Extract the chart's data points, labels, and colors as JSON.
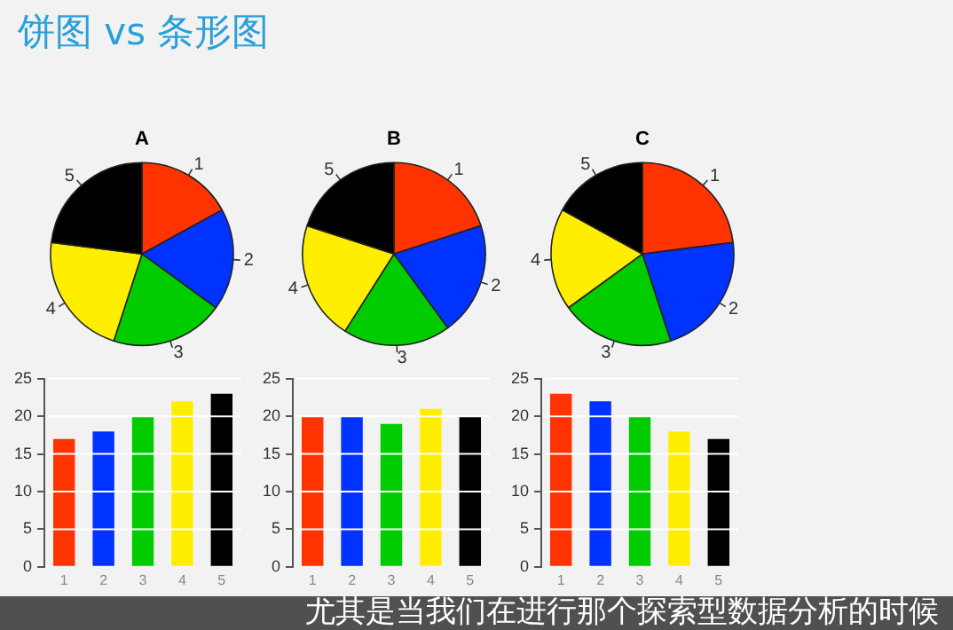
{
  "chart_data": [
    {
      "type": "pie",
      "title": "A",
      "annotations": [
        "饼图 vs 条形图"
      ],
      "categories": [
        "1",
        "2",
        "3",
        "4",
        "5"
      ],
      "values": [
        17,
        18,
        20,
        22,
        23
      ],
      "colors": [
        "#ff3300",
        "#0033ff",
        "#00cc00",
        "#ffee00",
        "#000000"
      ],
      "legend": false
    },
    {
      "type": "pie",
      "title": "B",
      "categories": [
        "1",
        "2",
        "3",
        "4",
        "5"
      ],
      "values": [
        20,
        20,
        19,
        21,
        20
      ],
      "colors": [
        "#ff3300",
        "#0033ff",
        "#00cc00",
        "#ffee00",
        "#000000"
      ],
      "legend": false
    },
    {
      "type": "pie",
      "title": "C",
      "categories": [
        "1",
        "2",
        "3",
        "4",
        "5"
      ],
      "values": [
        23,
        22,
        20,
        18,
        17
      ],
      "colors": [
        "#ff3300",
        "#0033ff",
        "#00cc00",
        "#ffee00",
        "#000000"
      ],
      "legend": false
    },
    {
      "type": "bar",
      "categories": [
        "1",
        "2",
        "3",
        "4",
        "5"
      ],
      "values": [
        17,
        18,
        20,
        22,
        23
      ],
      "colors": [
        "#ff3300",
        "#0033ff",
        "#00cc00",
        "#ffee00",
        "#000000"
      ],
      "ylim": [
        0,
        25
      ],
      "yticks": [
        0,
        5,
        10,
        15,
        20,
        25
      ],
      "grid": "y",
      "legend": false
    },
    {
      "type": "bar",
      "categories": [
        "1",
        "2",
        "3",
        "4",
        "5"
      ],
      "values": [
        20,
        20,
        19,
        21,
        20
      ],
      "colors": [
        "#ff3300",
        "#0033ff",
        "#00cc00",
        "#ffee00",
        "#000000"
      ],
      "ylim": [
        0,
        25
      ],
      "yticks": [
        0,
        5,
        10,
        15,
        20,
        25
      ],
      "grid": "y",
      "legend": false
    },
    {
      "type": "bar",
      "annotations": [
        "尤其是当我们在进行那个探索型数据分析的时候"
      ],
      "categories": [
        "1",
        "2",
        "3",
        "4",
        "5"
      ],
      "values": [
        23,
        22,
        20,
        18,
        17
      ],
      "colors": [
        "#ff3300",
        "#0033ff",
        "#00cc00",
        "#ffee00",
        "#000000"
      ],
      "ylim": [
        0,
        25
      ],
      "yticks": [
        0,
        5,
        10,
        15,
        20,
        25
      ],
      "grid": "y",
      "legend": false
    }
  ]
}
